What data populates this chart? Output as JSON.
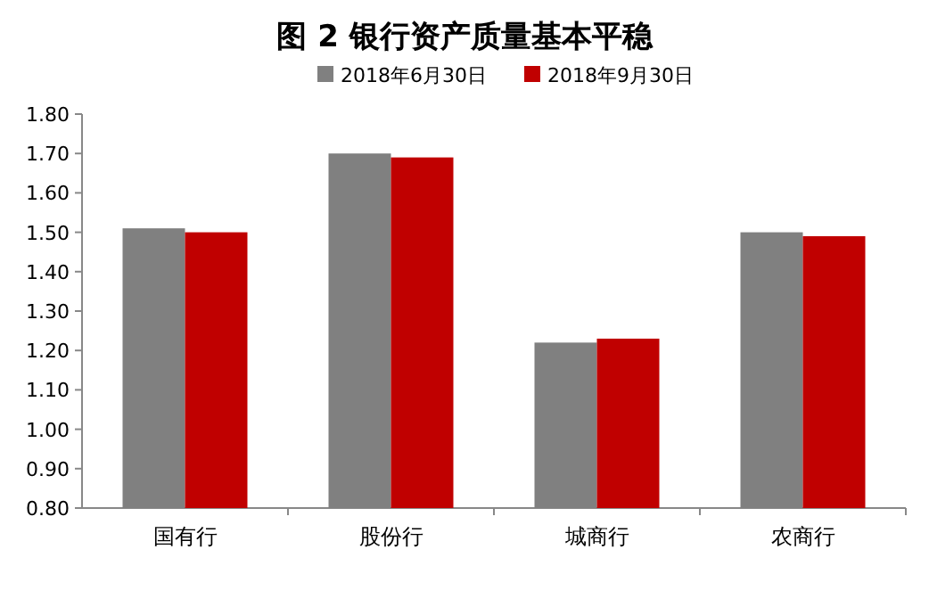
{
  "chart_data": {
    "type": "bar",
    "title": "图 2  银行资产质量基本平稳",
    "categories": [
      "国有行",
      "股份行",
      "城商行",
      "农商行"
    ],
    "series": [
      {
        "name": "2018年6月30日",
        "color": "#808080",
        "values": [
          1.51,
          1.7,
          1.22,
          1.5
        ]
      },
      {
        "name": "2018年9月30日",
        "color": "#c00000",
        "values": [
          1.5,
          1.69,
          1.23,
          1.49
        ]
      }
    ],
    "ylim": [
      0.8,
      1.8
    ],
    "yticks": [
      {
        "value": 0.8,
        "label": "0.80"
      },
      {
        "value": 0.9,
        "label": "0.90"
      },
      {
        "value": 1.0,
        "label": "1.00"
      },
      {
        "value": 1.1,
        "label": "1.10"
      },
      {
        "value": 1.2,
        "label": "1.20"
      },
      {
        "value": 1.3,
        "label": "1.30"
      },
      {
        "value": 1.4,
        "label": "1.40"
      },
      {
        "value": 1.5,
        "label": "1.50"
      },
      {
        "value": 1.6,
        "label": "1.60"
      },
      {
        "value": 1.7,
        "label": "1.70"
      },
      {
        "value": 1.8,
        "label": "1.80"
      }
    ],
    "legend": "top"
  }
}
